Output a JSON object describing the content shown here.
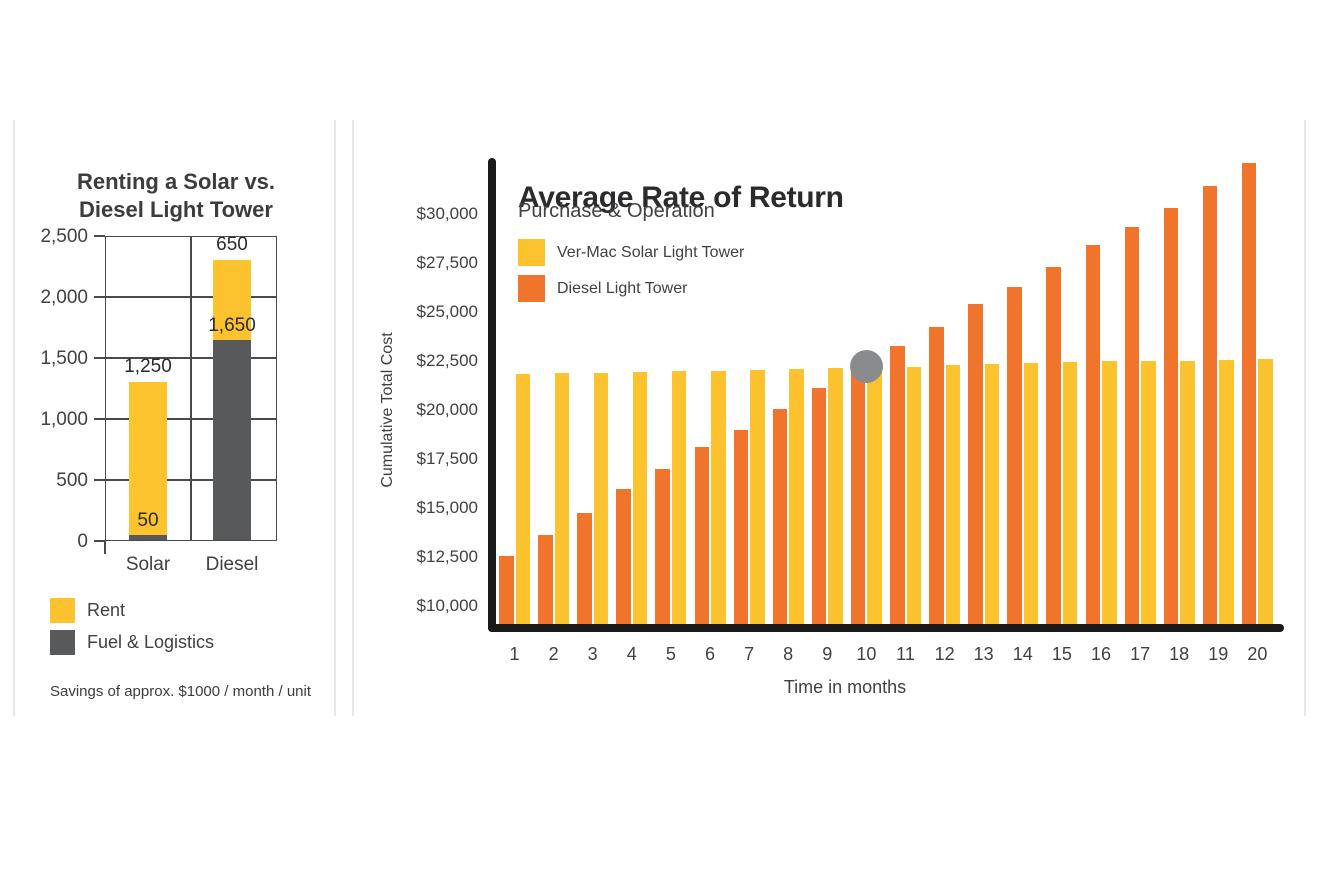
{
  "colors": {
    "solar_yellow": "#FDC32F",
    "diesel_orange": "#F0742B",
    "fuel_gray": "#58595B",
    "marker_gray": "#8A8B8D",
    "axis_black": "#1A1A1A",
    "text_dark": "#414042",
    "separator": "#E7E7E9"
  },
  "chart_data": [
    {
      "type": "bar",
      "subtype": "stacked",
      "title": "Renting a Solar vs. Diesel Light Tower",
      "title_lines": [
        "Renting a Solar vs.",
        "Diesel Light Tower"
      ],
      "categories": [
        "Solar",
        "Diesel"
      ],
      "series": [
        {
          "name": "Rent",
          "color": "#FDC32F",
          "values": [
            1250,
            650
          ],
          "labels": [
            "1,250",
            "650"
          ]
        },
        {
          "name": "Fuel & Logistics",
          "color": "#58595B",
          "values": [
            50,
            1650
          ],
          "labels": [
            "50",
            "1,650"
          ]
        }
      ],
      "stack_order_bottom_to_top": [
        "Fuel & Logistics",
        "Rent"
      ],
      "ylim": [
        0,
        2500
      ],
      "yticks": [
        0,
        500,
        1000,
        1500,
        2000,
        2500
      ],
      "ytick_labels": [
        "0",
        "500",
        "1,000",
        "1,500",
        "2,000",
        "2,500"
      ],
      "grid": true,
      "legend_position": "below-chart",
      "note": "Savings of approx. $1000 / month / unit"
    },
    {
      "type": "bar",
      "subtype": "grouped",
      "title": "Average Rate of Return",
      "subtitle": "Purchase & Operation",
      "xlabel": "Time in months",
      "ylabel": "Cumulative Total Cost",
      "categories": [
        1,
        2,
        3,
        4,
        5,
        6,
        7,
        8,
        9,
        10,
        11,
        12,
        13,
        14,
        15,
        16,
        17,
        18,
        19,
        20
      ],
      "series": [
        {
          "name": "Ver-Mac Solar Light Tower",
          "color": "#FDC32F",
          "values": [
            21850,
            21875,
            21900,
            21925,
            21975,
            22000,
            22050,
            22075,
            22125,
            22150,
            22200,
            22300,
            22350,
            22400,
            22450,
            22500,
            22500,
            22525,
            22550,
            22600
          ]
        },
        {
          "name": "Diesel Light Tower",
          "color": "#F0742B",
          "values": [
            12550,
            13600,
            14750,
            15950,
            17000,
            18100,
            19000,
            20050,
            21100,
            22000,
            23250,
            24250,
            25400,
            26300,
            27300,
            28450,
            29350,
            30350,
            31450,
            32600
          ]
        }
      ],
      "bar_draw_order_left_to_right": [
        "Diesel Light Tower",
        "Ver-Mac Solar Light Tower"
      ],
      "yticks": [
        10000,
        12500,
        15000,
        17500,
        20000,
        22500,
        25000,
        27500,
        30000
      ],
      "ytick_labels": [
        "$10,000",
        "$12,500",
        "$15,000",
        "$17,500",
        "$20,000",
        "$22,500",
        "$25,000",
        "$27,500",
        "$30,000"
      ],
      "axis_baseline_value": 8750,
      "axis_top_value": 32750,
      "grid": false,
      "legend_position": "top-left-inside",
      "breakeven_marker": {
        "shape": "circle",
        "month": 10,
        "value": 22200,
        "color": "#8A8B8D"
      }
    }
  ]
}
